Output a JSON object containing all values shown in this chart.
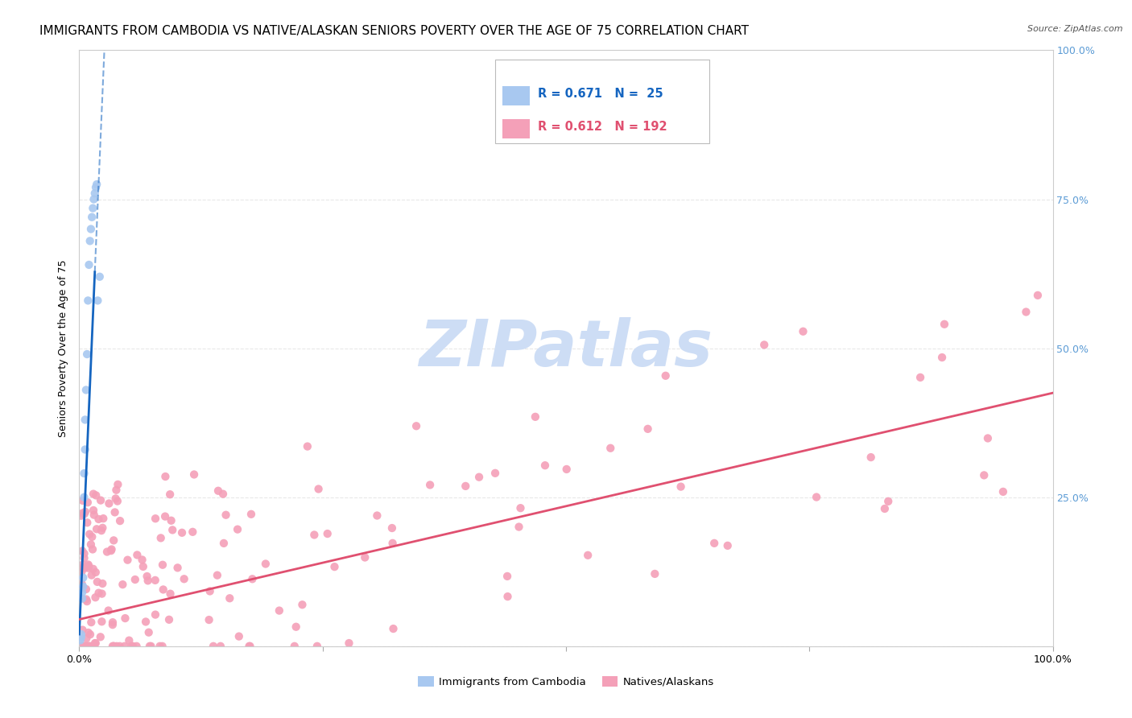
{
  "title": "IMMIGRANTS FROM CAMBODIA VS NATIVE/ALASKAN SENIORS POVERTY OVER THE AGE OF 75 CORRELATION CHART",
  "source": "Source: ZipAtlas.com",
  "ylabel": "Seniors Poverty Over the Age of 75",
  "legend1_R": "0.671",
  "legend1_N": "25",
  "legend2_R": "0.612",
  "legend2_N": "192",
  "cambodia_color": "#a8c8f0",
  "native_color": "#f4a0b8",
  "cambodia_line_color": "#1565c0",
  "native_line_color": "#e05070",
  "background_color": "#ffffff",
  "watermark_color": "#cdddf5",
  "grid_color": "#e8e8e8",
  "right_tick_color": "#5b9bd5",
  "title_fontsize": 11,
  "axis_label_fontsize": 9,
  "tick_fontsize": 9,
  "xlim": [
    0.0,
    1.0
  ],
  "ylim": [
    0.0,
    1.0
  ],
  "yticks": [
    0.0,
    0.25,
    0.5,
    0.75,
    1.0
  ],
  "xticks": [
    0.0,
    0.25,
    0.5,
    0.75,
    1.0
  ],
  "cam_seed": 7,
  "nat_seed": 42
}
